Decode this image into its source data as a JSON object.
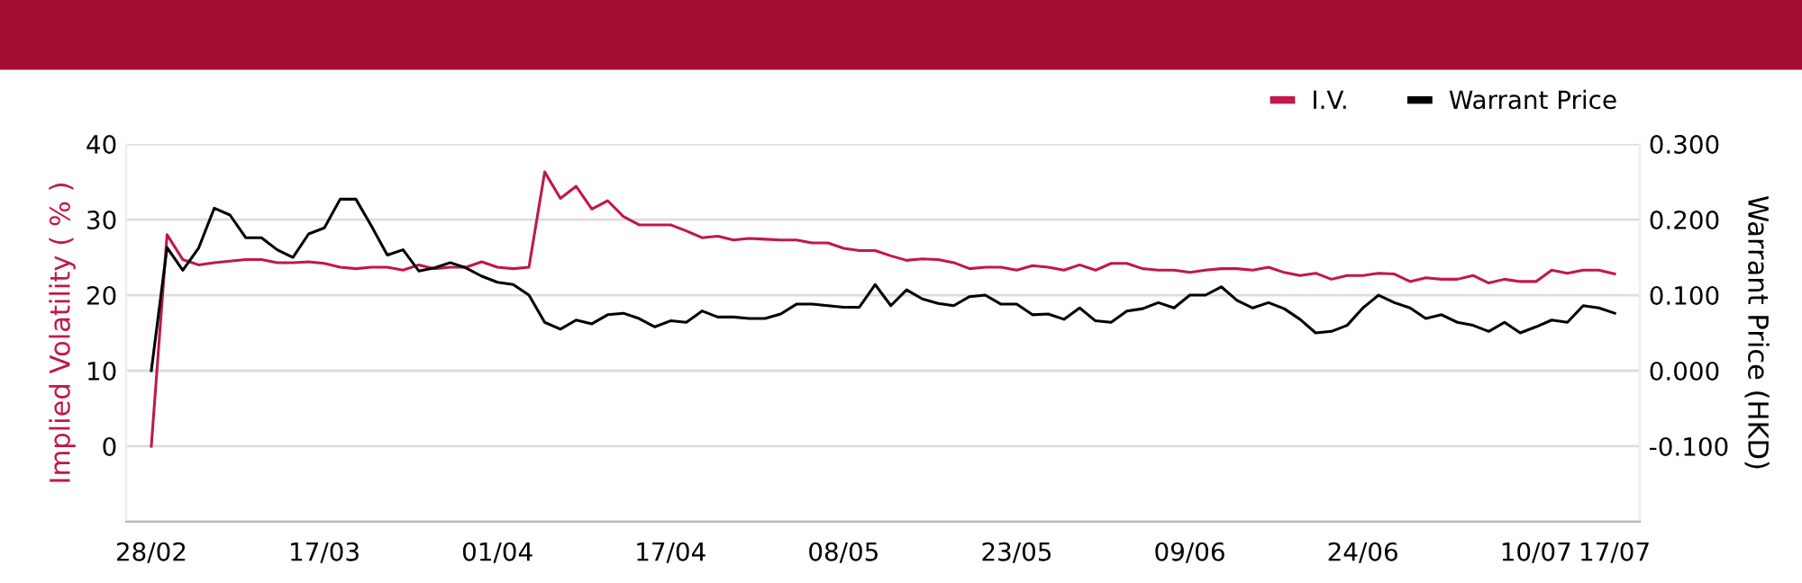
{
  "chart_data": {
    "type": "line",
    "categories": [
      "28/02",
      null,
      null,
      null,
      null,
      null,
      null,
      null,
      null,
      null,
      null,
      "17/03",
      null,
      null,
      null,
      null,
      null,
      null,
      null,
      null,
      null,
      null,
      "01/04",
      null,
      null,
      null,
      null,
      null,
      null,
      null,
      null,
      null,
      null,
      "17/04",
      null,
      null,
      null,
      null,
      null,
      null,
      null,
      null,
      null,
      null,
      "08/05",
      null,
      null,
      null,
      null,
      null,
      null,
      null,
      null,
      null,
      null,
      "23/05",
      null,
      null,
      null,
      null,
      null,
      null,
      null,
      null,
      null,
      null,
      "09/06",
      null,
      null,
      null,
      null,
      null,
      null,
      null,
      null,
      null,
      null,
      "24/06",
      null,
      null,
      null,
      null,
      null,
      null,
      null,
      null,
      null,
      null,
      "10/07",
      null,
      null,
      null,
      null,
      "17/07"
    ],
    "series": [
      {
        "name": "I.V.",
        "color": "#c0184a",
        "values": [
          0,
          28.0,
          24.7,
          24.0,
          24.3,
          24.5,
          24.7,
          24.7,
          24.3,
          24.3,
          24.4,
          24.2,
          23.7,
          23.5,
          23.7,
          23.7,
          23.3,
          24.0,
          23.5,
          23.7,
          23.7,
          24.4,
          23.7,
          23.5,
          23.7,
          36.3,
          32.8,
          34.4,
          31.4,
          32.5,
          30.4,
          29.3,
          29.3,
          29.3,
          28.5,
          27.6,
          27.8,
          27.3,
          27.5,
          27.4,
          27.3,
          27.3,
          26.9,
          26.9,
          26.2,
          25.9,
          25.9,
          25.2,
          24.6,
          24.8,
          24.7,
          24.3,
          23.5,
          23.7,
          23.7,
          23.3,
          23.9,
          23.7,
          23.3,
          24.0,
          23.3,
          24.2,
          24.2,
          23.5,
          23.3,
          23.3,
          23.0,
          23.3,
          23.5,
          23.5,
          23.3,
          23.7,
          23.0,
          22.6,
          22.9,
          22.1,
          22.6,
          22.6,
          22.9,
          22.8,
          21.8,
          22.3,
          22.1,
          22.1,
          22.6,
          21.6,
          22.1,
          21.8,
          21.8,
          23.3,
          22.9,
          23.3,
          23.3,
          22.8
        ]
      },
      {
        "name": "Warrant Price",
        "color": "#000000",
        "axis": "y2",
        "values": [
          0.0,
          0.163,
          0.133,
          0.162,
          0.215,
          0.206,
          0.176,
          0.176,
          0.16,
          0.15,
          0.181,
          0.189,
          0.227,
          0.227,
          0.191,
          0.153,
          0.16,
          0.132,
          0.136,
          0.143,
          0.136,
          0.125,
          0.117,
          0.114,
          0.1,
          0.064,
          0.055,
          0.067,
          0.062,
          0.074,
          0.076,
          0.069,
          0.058,
          0.066,
          0.064,
          0.079,
          0.071,
          0.071,
          0.069,
          0.069,
          0.075,
          0.088,
          0.088,
          0.086,
          0.084,
          0.084,
          0.114,
          0.086,
          0.107,
          0.095,
          0.089,
          0.086,
          0.098,
          0.1,
          0.088,
          0.088,
          0.074,
          0.075,
          0.068,
          0.083,
          0.066,
          0.064,
          0.079,
          0.082,
          0.09,
          0.083,
          0.1,
          0.1,
          0.111,
          0.093,
          0.083,
          0.09,
          0.082,
          0.068,
          0.05,
          0.052,
          0.06,
          0.083,
          0.1,
          0.09,
          0.083,
          0.069,
          0.074,
          0.064,
          0.06,
          0.052,
          0.064,
          0.05,
          0.058,
          0.067,
          0.064,
          0.086,
          0.083,
          0.076
        ]
      }
    ],
    "ylabel": "Implied Volatility ( % )",
    "y2label": "Warrant Price (HKD)",
    "ylim": [
      -10,
      40
    ],
    "yticks": [
      0,
      10,
      20,
      30,
      40
    ],
    "y2lim": [
      -0.2,
      0.3
    ],
    "y2ticks": [
      {
        "value": -0.1,
        "label": "-0.100"
      },
      {
        "value": 0,
        "label": "0.000"
      },
      {
        "value": 0.1,
        "label": "0.100"
      },
      {
        "value": 0.2,
        "label": "0.200"
      },
      {
        "value": 0.3,
        "label": "0.300"
      }
    ],
    "grid": "y",
    "legend": "top right",
    "marker": "none",
    "line_style": "solid"
  }
}
